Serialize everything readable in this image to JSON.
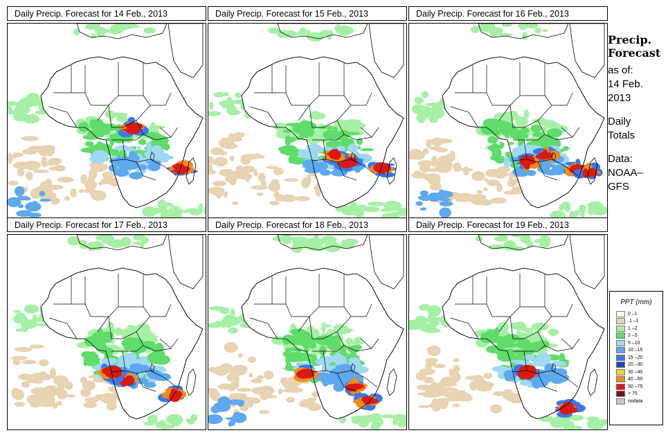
{
  "panels": [
    {
      "title": "Daily Precip. Forecast for  14 Feb., 2013"
    },
    {
      "title": "Daily Precip. Forecast for  15 Feb., 2013"
    },
    {
      "title": "Daily Precip. Forecast for  16 Feb., 2013"
    },
    {
      "title": "Daily Precip. Forecast for  17 Feb., 2013"
    },
    {
      "title": "Daily Precip. Forecast for  18 Feb., 2013"
    },
    {
      "title": "Daily Precip. Forecast for  19 Feb., 2013"
    }
  ],
  "side": {
    "line1": "Precip.",
    "line2": "Forecast",
    "asof": "as of:",
    "date1": "14 Feb.",
    "date2": "2013",
    "daily1": "Daily",
    "daily2": "Totals",
    "data1": "Data:",
    "data2": "NOAA–",
    "data3": "GFS"
  },
  "legend": {
    "title": "PPT (mm)",
    "items": [
      {
        "label": "0 –1",
        "color": "#ffffff"
      },
      {
        "label": ".1 –1",
        "color": "#e8d3b2"
      },
      {
        "label": "1 –2",
        "color": "#a6f0a6"
      },
      {
        "label": "2 –5",
        "color": "#5fdc6a"
      },
      {
        "label": "5 –10",
        "color": "#9fd9f2"
      },
      {
        "label": "10 –15",
        "color": "#5ea8ee"
      },
      {
        "label": "15 –20",
        "color": "#3a78e6"
      },
      {
        "label": "20 –30",
        "color": "#1b43c8"
      },
      {
        "label": "30 –40",
        "color": "#f5d23a"
      },
      {
        "label": "40 –50",
        "color": "#f08a1e"
      },
      {
        "label": "50 –75",
        "color": "#d81a12"
      },
      {
        "label": "> 75",
        "color": "#7a1208"
      },
      {
        "label": "nodata",
        "color": "#c8c8c8"
      }
    ]
  }
}
